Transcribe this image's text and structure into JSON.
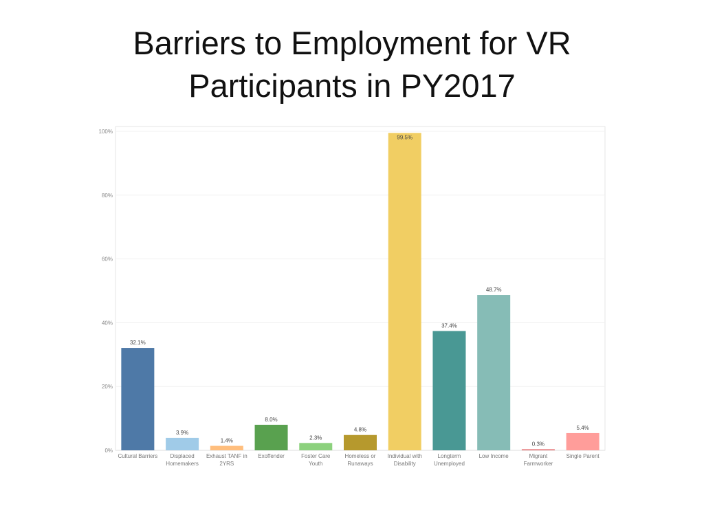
{
  "title_lines": [
    "Barriers to Employment for VR",
    "Participants in PY2017"
  ],
  "chart_data": {
    "type": "bar",
    "title": "Barriers to Employment for VR Participants in PY2017",
    "xlabel": "",
    "ylabel": "",
    "ylim": [
      0,
      100
    ],
    "yticks": [
      0,
      20,
      40,
      60,
      80,
      100
    ],
    "ytick_labels": [
      "0%",
      "20%",
      "40%",
      "60%",
      "80%",
      "100%"
    ],
    "grid": true,
    "categories": [
      [
        "Cultural Barriers"
      ],
      [
        "Displaced",
        "Homemakers"
      ],
      [
        "Exhaust TANF in",
        "2YRS"
      ],
      [
        "Exoffender"
      ],
      [
        "Foster Care",
        "Youth"
      ],
      [
        "Homeless or",
        "Runaways"
      ],
      [
        "Individual with",
        "Disability"
      ],
      [
        "Longterm",
        "Unemployed"
      ],
      [
        "Low Income"
      ],
      [
        "Migrant",
        "Farmworker"
      ],
      [
        "Single Parent"
      ]
    ],
    "values": [
      32.1,
      3.9,
      1.4,
      8.0,
      2.3,
      4.8,
      99.5,
      37.4,
      48.7,
      0.3,
      5.4
    ],
    "data_labels": [
      "32.1%",
      "3.9%",
      "1.4%",
      "8.0%",
      "2.3%",
      "4.8%",
      "99.5%",
      "37.4%",
      "48.7%",
      "0.3%",
      "5.4%"
    ],
    "colors": [
      "#4e79a7",
      "#a0cbe8",
      "#ffbe7d",
      "#59a14f",
      "#8cd17d",
      "#b6992d",
      "#f1ce63",
      "#499894",
      "#86bcb6",
      "#e15759",
      "#ff9d9a"
    ]
  }
}
